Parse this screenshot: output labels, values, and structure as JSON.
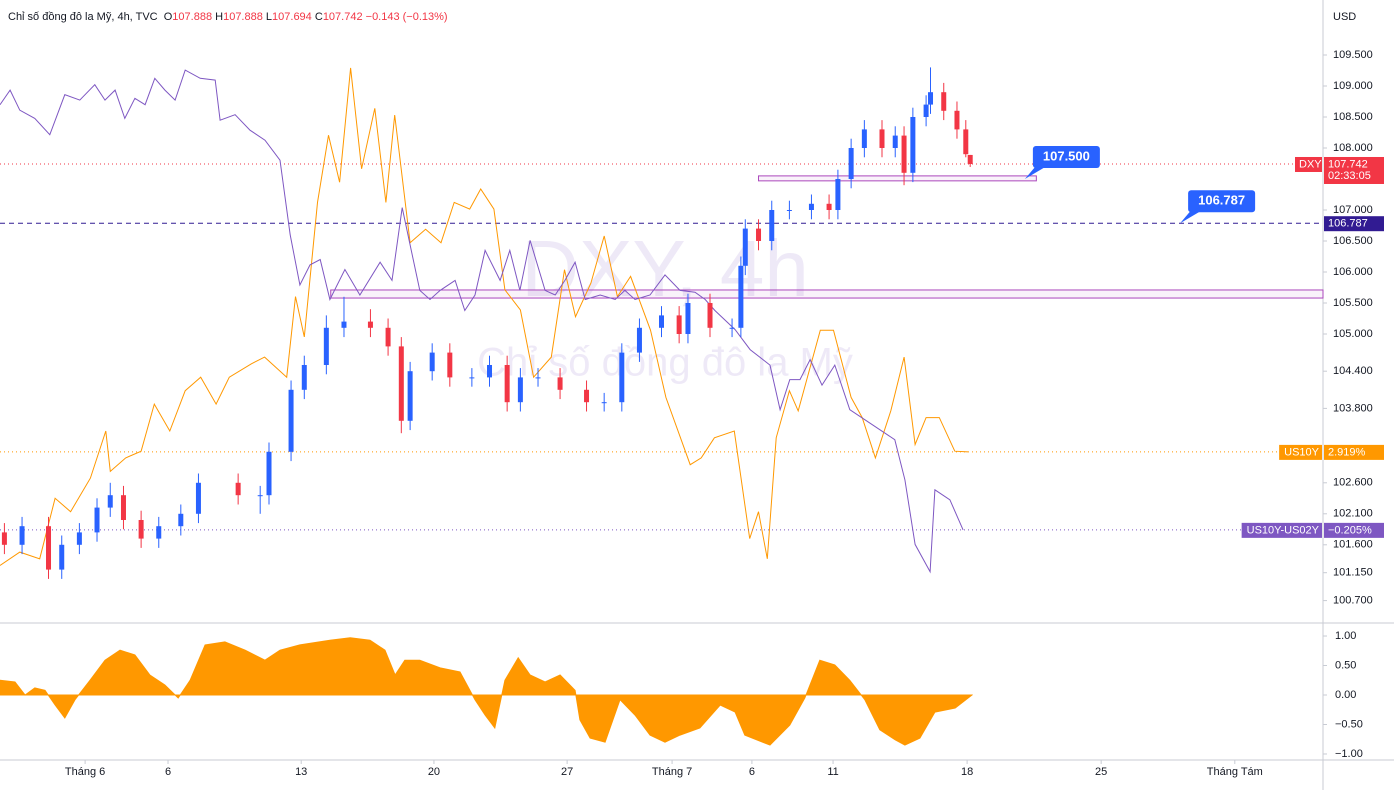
{
  "header": {
    "symbol": "Chỉ số đồng đô la Mỹ, 4h, TVC",
    "open_label": "O",
    "open": "107.888",
    "high_label": "H",
    "high": "107.888",
    "low_label": "L",
    "low": "107.694",
    "close_label": "C",
    "close": "107.742",
    "change": "−0.143 (−0.13%)"
  },
  "watermark": {
    "title": "DXY, 4h",
    "subtitle": "Chỉ số đồng đô la Mỹ"
  },
  "currency": "USD",
  "chart_data": [
    {
      "type": "candlestick",
      "up_color": "#2962ff",
      "down_color": "#f23645",
      "x": [
        1,
        5,
        11,
        14,
        18,
        22,
        25,
        28,
        32,
        36,
        41,
        45,
        54,
        59,
        61,
        66,
        69,
        74,
        78,
        84,
        88,
        91,
        93,
        98,
        102,
        107,
        111,
        115,
        118,
        122,
        127,
        133,
        137,
        141,
        145,
        150,
        154,
        156,
        161,
        166,
        168,
        169,
        172,
        175,
        179,
        184,
        188,
        190,
        193,
        196,
        200,
        203,
        205,
        207,
        210,
        211,
        214,
        217,
        219,
        220
      ],
      "open": [
        101.8,
        101.6,
        101.9,
        101.2,
        101.6,
        101.8,
        102.2,
        102.4,
        102.0,
        101.7,
        101.9,
        102.1,
        102.6,
        102.4,
        102.4,
        103.1,
        104.1,
        104.5,
        105.1,
        105.2,
        105.1,
        104.8,
        103.6,
        104.4,
        104.7,
        104.3,
        104.3,
        104.5,
        103.9,
        104.3,
        104.3,
        104.1,
        103.9,
        103.9,
        104.7,
        105.1,
        105.3,
        105.0,
        105.5,
        105.1,
        105.1,
        106.1,
        106.7,
        106.5,
        107.0,
        107.0,
        107.1,
        107.0,
        107.5,
        108.0,
        108.3,
        108.0,
        108.2,
        107.6,
        108.5,
        108.7,
        108.9,
        108.6,
        108.3,
        107.888
      ],
      "high": [
        101.95,
        102.05,
        102.05,
        101.75,
        101.95,
        102.35,
        102.6,
        102.55,
        102.15,
        102.05,
        102.25,
        102.75,
        102.75,
        102.55,
        103.25,
        104.25,
        104.65,
        105.3,
        105.6,
        105.4,
        105.25,
        104.95,
        104.55,
        104.85,
        104.85,
        104.45,
        104.65,
        104.65,
        104.45,
        104.45,
        104.45,
        104.25,
        104.05,
        104.85,
        105.25,
        105.45,
        105.45,
        105.65,
        105.65,
        105.25,
        106.25,
        106.85,
        106.85,
        107.15,
        107.15,
        107.25,
        107.25,
        107.65,
        108.15,
        108.45,
        108.45,
        108.35,
        108.35,
        108.65,
        108.85,
        109.3,
        109.05,
        108.75,
        108.45,
        107.888
      ],
      "low": [
        101.45,
        101.45,
        101.05,
        101.05,
        101.45,
        101.65,
        102.05,
        101.85,
        101.55,
        101.55,
        101.75,
        101.95,
        102.25,
        102.1,
        102.25,
        102.95,
        103.95,
        104.35,
        104.95,
        104.95,
        104.65,
        103.4,
        103.45,
        104.25,
        104.15,
        104.15,
        104.15,
        103.75,
        103.75,
        104.15,
        103.95,
        103.75,
        103.75,
        103.75,
        104.55,
        104.95,
        104.85,
        104.85,
        104.95,
        104.95,
        104.95,
        105.95,
        106.35,
        106.35,
        106.85,
        106.85,
        106.85,
        106.85,
        107.35,
        107.85,
        107.85,
        107.85,
        107.4,
        107.45,
        108.35,
        108.55,
        108.45,
        108.15,
        107.85,
        107.694
      ],
      "close": [
        101.6,
        101.9,
        101.2,
        101.6,
        101.8,
        102.2,
        102.4,
        102.0,
        101.7,
        101.9,
        102.1,
        102.6,
        102.4,
        102.4,
        103.1,
        104.1,
        104.5,
        105.1,
        105.2,
        105.1,
        104.8,
        103.6,
        104.4,
        104.7,
        104.3,
        104.3,
        104.5,
        103.9,
        104.3,
        104.3,
        104.1,
        103.9,
        103.9,
        104.7,
        105.1,
        105.3,
        105.0,
        105.5,
        105.1,
        105.1,
        106.1,
        106.7,
        106.5,
        107.0,
        107.0,
        107.1,
        107.0,
        107.5,
        108.0,
        108.3,
        108.0,
        108.2,
        107.6,
        108.5,
        108.7,
        108.9,
        108.6,
        108.3,
        107.9,
        107.742
      ],
      "xlim": [
        0,
        300
      ],
      "xticks": [
        {
          "value": 19.3,
          "label": "Tháng 6"
        },
        {
          "value": 38.1,
          "label": "6"
        },
        {
          "value": 68.3,
          "label": "13"
        },
        {
          "value": 98.4,
          "label": "20"
        },
        {
          "value": 128.6,
          "label": "27"
        },
        {
          "value": 152.4,
          "label": "Tháng 7"
        },
        {
          "value": 170.5,
          "label": "6"
        },
        {
          "value": 188.9,
          "label": "11"
        },
        {
          "value": 219.3,
          "label": "18"
        },
        {
          "value": 249.7,
          "label": "25"
        },
        {
          "value": 280.0,
          "label": "Tháng Tám"
        }
      ],
      "ylim": [
        100.387,
        110.387
      ],
      "yticks": [
        {
          "value": 109.5,
          "label": "109.500"
        },
        {
          "value": 109.0,
          "label": "109.000"
        },
        {
          "value": 108.5,
          "label": "108.500"
        },
        {
          "value": 108.0,
          "label": "108.000"
        },
        {
          "value": 107.0,
          "label": "107.000"
        },
        {
          "value": 106.5,
          "label": "106.500"
        },
        {
          "value": 106.0,
          "label": "106.000"
        },
        {
          "value": 105.5,
          "label": "105.500"
        },
        {
          "value": 105.0,
          "label": "105.000"
        },
        {
          "value": 104.4,
          "label": "104.400"
        },
        {
          "value": 103.8,
          "label": "103.800"
        },
        {
          "value": 102.6,
          "label": "102.600"
        },
        {
          "value": 102.1,
          "label": "102.100"
        },
        {
          "value": 101.6,
          "label": "101.600"
        },
        {
          "value": 101.15,
          "label": "101.150"
        },
        {
          "value": 100.7,
          "label": "100.700"
        }
      ],
      "series": [
        {
          "name": "US10Y",
          "color": "#ff9800",
          "ylim": [
            2.669,
            3.591
          ],
          "last_label": "2.919%",
          "x": [
            0,
            4.5,
            9,
            12.5,
            16,
            20.5,
            24,
            25,
            28.5,
            32,
            35,
            38.5,
            42,
            45.5,
            49,
            52,
            57,
            60,
            65,
            67,
            69,
            72,
            74.5,
            77,
            79.5,
            82,
            85,
            87.5,
            89.5,
            93,
            96.5,
            100,
            103,
            106.5,
            109,
            112,
            114.5,
            118,
            121,
            125,
            128,
            130.5,
            134,
            137,
            140,
            143,
            147.5,
            151,
            156.5,
            159,
            162,
            166.5,
            170,
            172,
            174,
            176,
            179,
            181,
            186,
            189,
            193,
            195.5,
            198.5,
            202,
            205,
            207.5,
            210,
            213,
            216.5,
            219.5
          ],
          "values": [
            2.75,
            2.77,
            2.76,
            2.85,
            2.83,
            2.88,
            2.95,
            2.89,
            2.91,
            2.92,
            2.99,
            2.95,
            3.01,
            3.03,
            2.99,
            3.03,
            3.05,
            3.06,
            3.03,
            3.15,
            3.09,
            3.29,
            3.39,
            3.32,
            3.49,
            3.34,
            3.43,
            3.29,
            3.42,
            3.23,
            3.25,
            3.23,
            3.29,
            3.28,
            3.31,
            3.28,
            3.16,
            3.13,
            3.03,
            3.06,
            3.19,
            3.12,
            3.17,
            3.24,
            3.15,
            3.18,
            3.1,
            3.0,
            2.9,
            2.91,
            2.94,
            2.95,
            2.79,
            2.83,
            2.76,
            2.94,
            3.01,
            2.98,
            3.1,
            3.1,
            3.0,
            2.97,
            2.91,
            2.98,
            3.06,
            2.93,
            2.97,
            2.97,
            2.92,
            2.919
          ]
        },
        {
          "name": "US10Y-US02Y",
          "color": "#7e57c2",
          "ylim": [
            -0.304,
            0.377
          ],
          "last_label": "−0.205%",
          "x": [
            0,
            2.3,
            4.5,
            7.9,
            11.3,
            14.7,
            18.1,
            21.5,
            23.8,
            26.1,
            28.3,
            30.6,
            32.9,
            35.1,
            37.4,
            39.7,
            42,
            45.4,
            48.8,
            49.9,
            53.3,
            56.7,
            60.1,
            63.5,
            65.8,
            68,
            70.3,
            72.6,
            74.8,
            78.2,
            81.6,
            86.2,
            88.9,
            91.2,
            93,
            95.2,
            97.5,
            99.8,
            103.2,
            105.4,
            107.7,
            110,
            113.4,
            115.6,
            117.9,
            120.2,
            123.6,
            125.9,
            128.1,
            130.4,
            132.7,
            136.1,
            139.5,
            141.7,
            144,
            147.4,
            150.8,
            154.2,
            157.6,
            159.9,
            162.1,
            166.7,
            170.1,
            174.6,
            176.9,
            179.1,
            181.4,
            183.7,
            186.4,
            189.3,
            192.7,
            196.1,
            199.5,
            202.9,
            205.2,
            207.5,
            210.9,
            212,
            215.4,
            218.4
          ],
          "values": [
            0.262,
            0.278,
            0.256,
            0.247,
            0.229,
            0.273,
            0.267,
            0.284,
            0.267,
            0.278,
            0.247,
            0.269,
            0.262,
            0.291,
            0.278,
            0.267,
            0.3,
            0.291,
            0.289,
            0.245,
            0.251,
            0.234,
            0.223,
            0.201,
            0.119,
            0.064,
            0.086,
            0.092,
            0.048,
            0.081,
            0.053,
            0.089,
            0.069,
            0.149,
            0.108,
            0.058,
            0.048,
            0.058,
            0.069,
            0.036,
            0.053,
            0.102,
            0.069,
            0.102,
            0.058,
            0.113,
            0.058,
            0.053,
            0.069,
            0.089,
            0.048,
            0.053,
            0.048,
            0.058,
            0.048,
            0.053,
            0.075,
            0.058,
            0.056,
            0.048,
            0.036,
            0.015,
            -0.007,
            -0.024,
            -0.073,
            -0.04,
            -0.04,
            -0.018,
            -0.046,
            -0.024,
            -0.073,
            -0.084,
            -0.095,
            -0.106,
            -0.15,
            -0.221,
            -0.251,
            -0.161,
            -0.172,
            -0.205
          ]
        }
      ],
      "last_price": {
        "name": "DXY",
        "value": 107.742,
        "countdown": "02:33:05",
        "color": "#f23645"
      },
      "price_line": {
        "value": 106.787,
        "color": "#311b92"
      },
      "callouts": [
        {
          "value": 107.5,
          "label": "107.500",
          "x": 232.4
        },
        {
          "value": 106.787,
          "label": "106.787",
          "x": 267.6
        }
      ],
      "zones": [
        {
          "x": [
            75,
            300
          ],
          "y": [
            105.58,
            105.71
          ]
        },
        {
          "x": [
            172,
            235
          ],
          "y": [
            107.47,
            107.55
          ]
        }
      ]
    },
    {
      "type": "area",
      "color": "#ff9800",
      "xlim": [
        0,
        300
      ],
      "ylim": [
        -1.102,
        1.153
      ],
      "yticks": [
        {
          "value": 1,
          "label": "1.00"
        },
        {
          "value": 0.5,
          "label": "0.50"
        },
        {
          "value": 0,
          "label": "0.00"
        },
        {
          "value": -0.5,
          "label": "−0.50"
        },
        {
          "value": -1,
          "label": "−1.00"
        }
      ],
      "x": [
        0,
        3.4,
        5.7,
        7.9,
        10.2,
        12.5,
        14.7,
        17,
        20.4,
        23.8,
        27.2,
        30.6,
        34,
        37.4,
        40.4,
        43.1,
        46.5,
        51,
        55.6,
        60.1,
        63.5,
        68,
        74.8,
        79.4,
        83.9,
        87.3,
        89.6,
        91.8,
        95.2,
        99.8,
        104.3,
        107.7,
        110,
        112.2,
        114.5,
        117.5,
        120.2,
        123.6,
        127,
        130.4,
        131.5,
        133.8,
        137.2,
        140.6,
        144,
        147.4,
        150.8,
        154.2,
        158.7,
        163.3,
        166.7,
        168.9,
        174.6,
        179.1,
        182.5,
        185.9,
        189.3,
        192.7,
        196.1,
        199.5,
        203,
        205.2,
        208.6,
        212,
        216.6,
        220.4
      ],
      "values": [
        0.25,
        0.22,
        0,
        0.12,
        0.08,
        -0.17,
        -0.39,
        -0.08,
        0.25,
        0.59,
        0.76,
        0.68,
        0.34,
        0.17,
        -0.05,
        0.25,
        0.85,
        0.9,
        0.76,
        0.59,
        0.76,
        0.85,
        0.93,
        0.97,
        0.93,
        0.76,
        0.34,
        0.59,
        0.59,
        0.46,
        0.39,
        -0.08,
        -0.34,
        -0.56,
        0.25,
        0.63,
        0.34,
        0.22,
        0.34,
        0.08,
        -0.42,
        -0.73,
        -0.8,
        -0.08,
        -0.34,
        -0.68,
        -0.8,
        -0.68,
        -0.56,
        -0.17,
        -0.29,
        -0.68,
        -0.85,
        -0.51,
        -0.05,
        0.59,
        0.51,
        0.25,
        -0.08,
        -0.59,
        -0.76,
        -0.85,
        -0.73,
        -0.29,
        -0.22,
        0
      ]
    }
  ]
}
